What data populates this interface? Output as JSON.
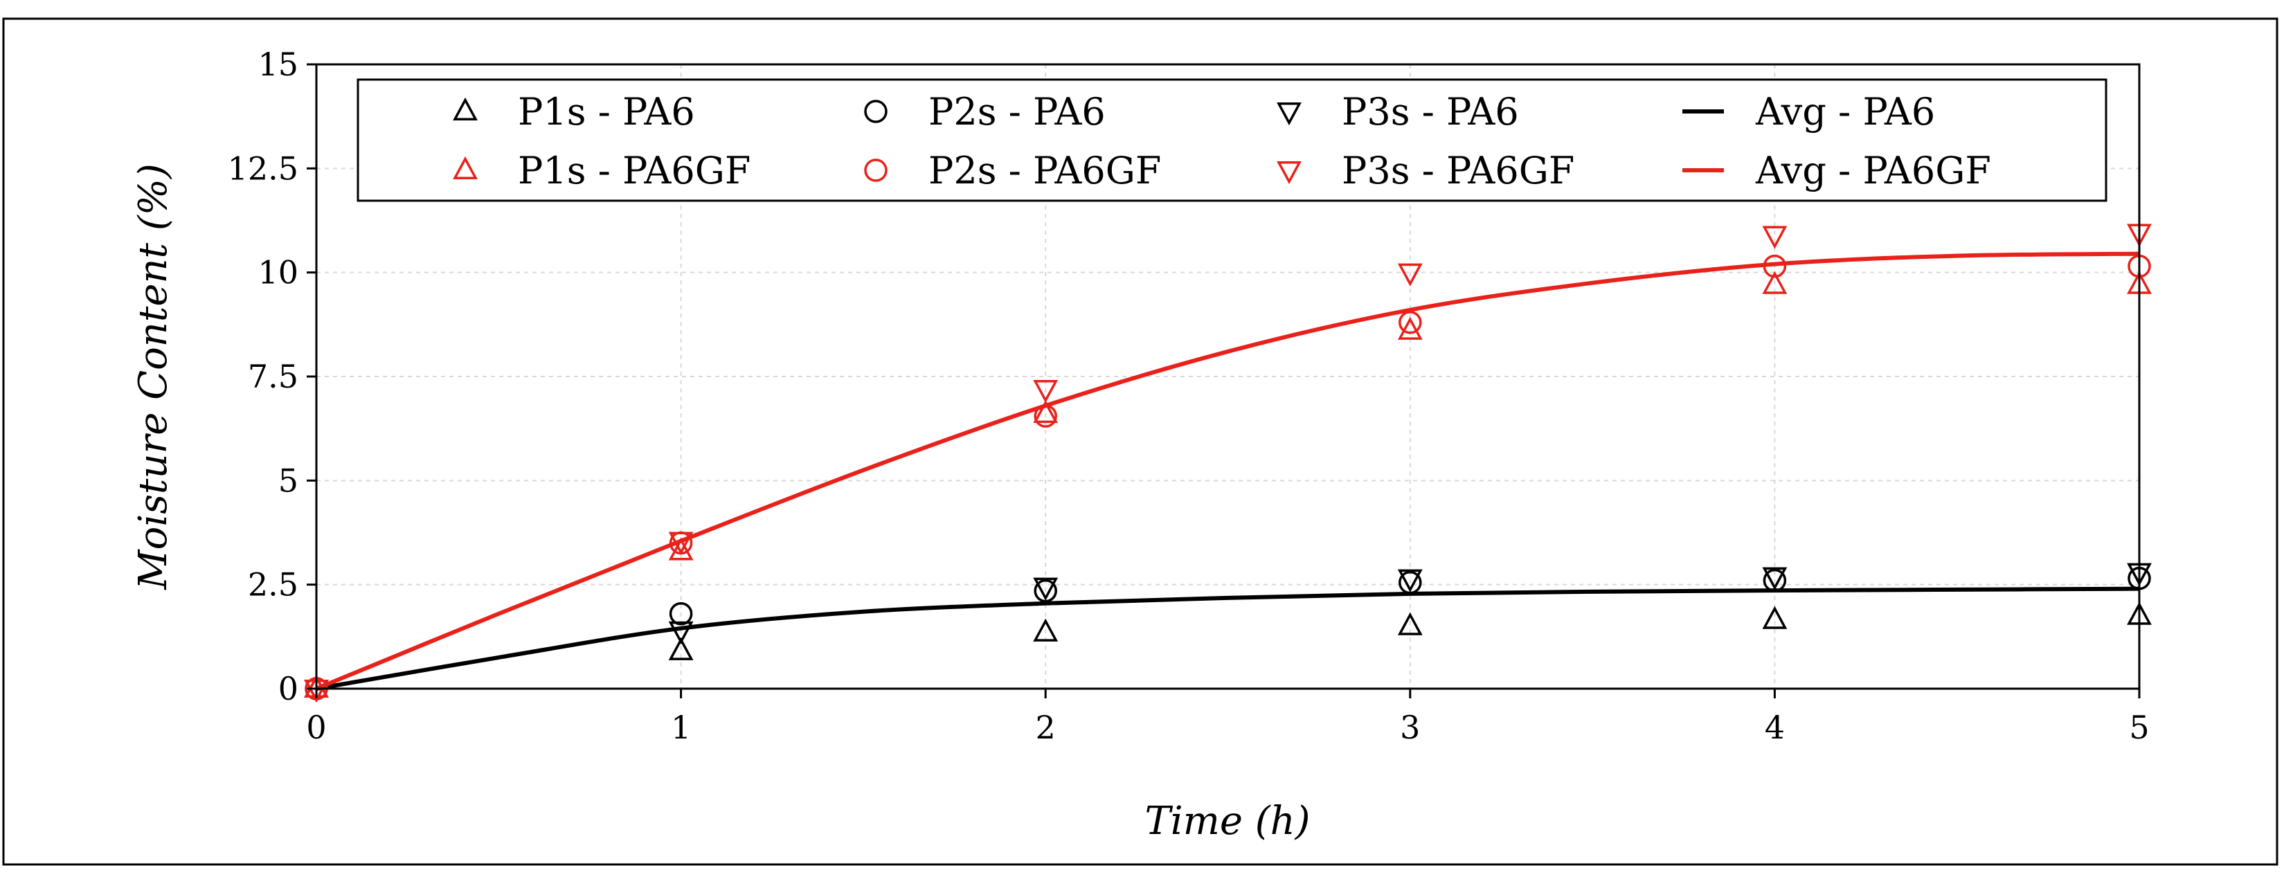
{
  "chart_data": {
    "type": "scatter",
    "xlabel": "Time (h)",
    "ylabel": "Moisture Content (%)",
    "xlim": [
      0,
      5
    ],
    "ylim": [
      0,
      15
    ],
    "xticks": [
      0,
      1,
      2,
      3,
      4,
      5
    ],
    "yticks": [
      0,
      2.5,
      5,
      7.5,
      10,
      12.5,
      15
    ],
    "xtick_labels": [
      "0",
      "1",
      "2",
      "3",
      "4",
      "5"
    ],
    "ytick_labels": [
      "0",
      "2.5",
      "5",
      "7.5",
      "10",
      "12.5",
      "15"
    ],
    "grid": true,
    "legend_position": "top",
    "colors": {
      "pa6": "#000000",
      "pa6gf": "#e8221b"
    },
    "series": [
      {
        "name": "P1s - PA6",
        "kind": "marker",
        "marker": "triangle-up",
        "color": "#000000",
        "x": [
          0,
          1,
          2,
          3,
          4,
          5
        ],
        "y": [
          0,
          0.9,
          1.35,
          1.5,
          1.65,
          1.75
        ]
      },
      {
        "name": "P2s - PA6",
        "kind": "marker",
        "marker": "circle",
        "color": "#000000",
        "x": [
          0,
          1,
          2,
          3,
          4,
          5
        ],
        "y": [
          0,
          1.8,
          2.35,
          2.55,
          2.6,
          2.65
        ]
      },
      {
        "name": "P3s - PA6",
        "kind": "marker",
        "marker": "triangle-down",
        "color": "#000000",
        "x": [
          0,
          1,
          2,
          3,
          4,
          5
        ],
        "y": [
          0,
          1.4,
          2.45,
          2.65,
          2.7,
          2.8
        ]
      },
      {
        "name": "Avg - PA6",
        "kind": "line",
        "color": "#000000",
        "x": [
          0,
          0.5,
          1,
          1.5,
          2,
          2.5,
          3,
          3.5,
          4,
          4.5,
          5
        ],
        "y": [
          0,
          0.75,
          1.45,
          1.85,
          2.05,
          2.18,
          2.28,
          2.33,
          2.36,
          2.38,
          2.4
        ]
      },
      {
        "name": "P1s - PA6GF",
        "kind": "marker",
        "marker": "triangle-up",
        "color": "#e8221b",
        "x": [
          0,
          1,
          2,
          3,
          4,
          5
        ],
        "y": [
          0,
          3.3,
          6.6,
          8.6,
          9.7,
          9.7
        ]
      },
      {
        "name": "P2s - PA6GF",
        "kind": "marker",
        "marker": "circle",
        "color": "#e8221b",
        "x": [
          0,
          1,
          2,
          3,
          4,
          5
        ],
        "y": [
          0,
          3.5,
          6.55,
          8.8,
          10.15,
          10.15
        ]
      },
      {
        "name": "P3s - PA6GF",
        "kind": "marker",
        "marker": "triangle-down",
        "color": "#e8221b",
        "x": [
          0,
          1,
          2,
          3,
          4,
          5
        ],
        "y": [
          0,
          3.55,
          7.2,
          10.0,
          10.9,
          10.95
        ]
      },
      {
        "name": "Avg - PA6GF",
        "kind": "line",
        "color": "#e8221b",
        "x": [
          0,
          0.5,
          1,
          1.5,
          2,
          2.5,
          3,
          3.5,
          4,
          4.5,
          5
        ],
        "y": [
          0,
          1.8,
          3.55,
          5.25,
          6.8,
          8.1,
          9.1,
          9.75,
          10.2,
          10.4,
          10.45
        ]
      }
    ]
  }
}
